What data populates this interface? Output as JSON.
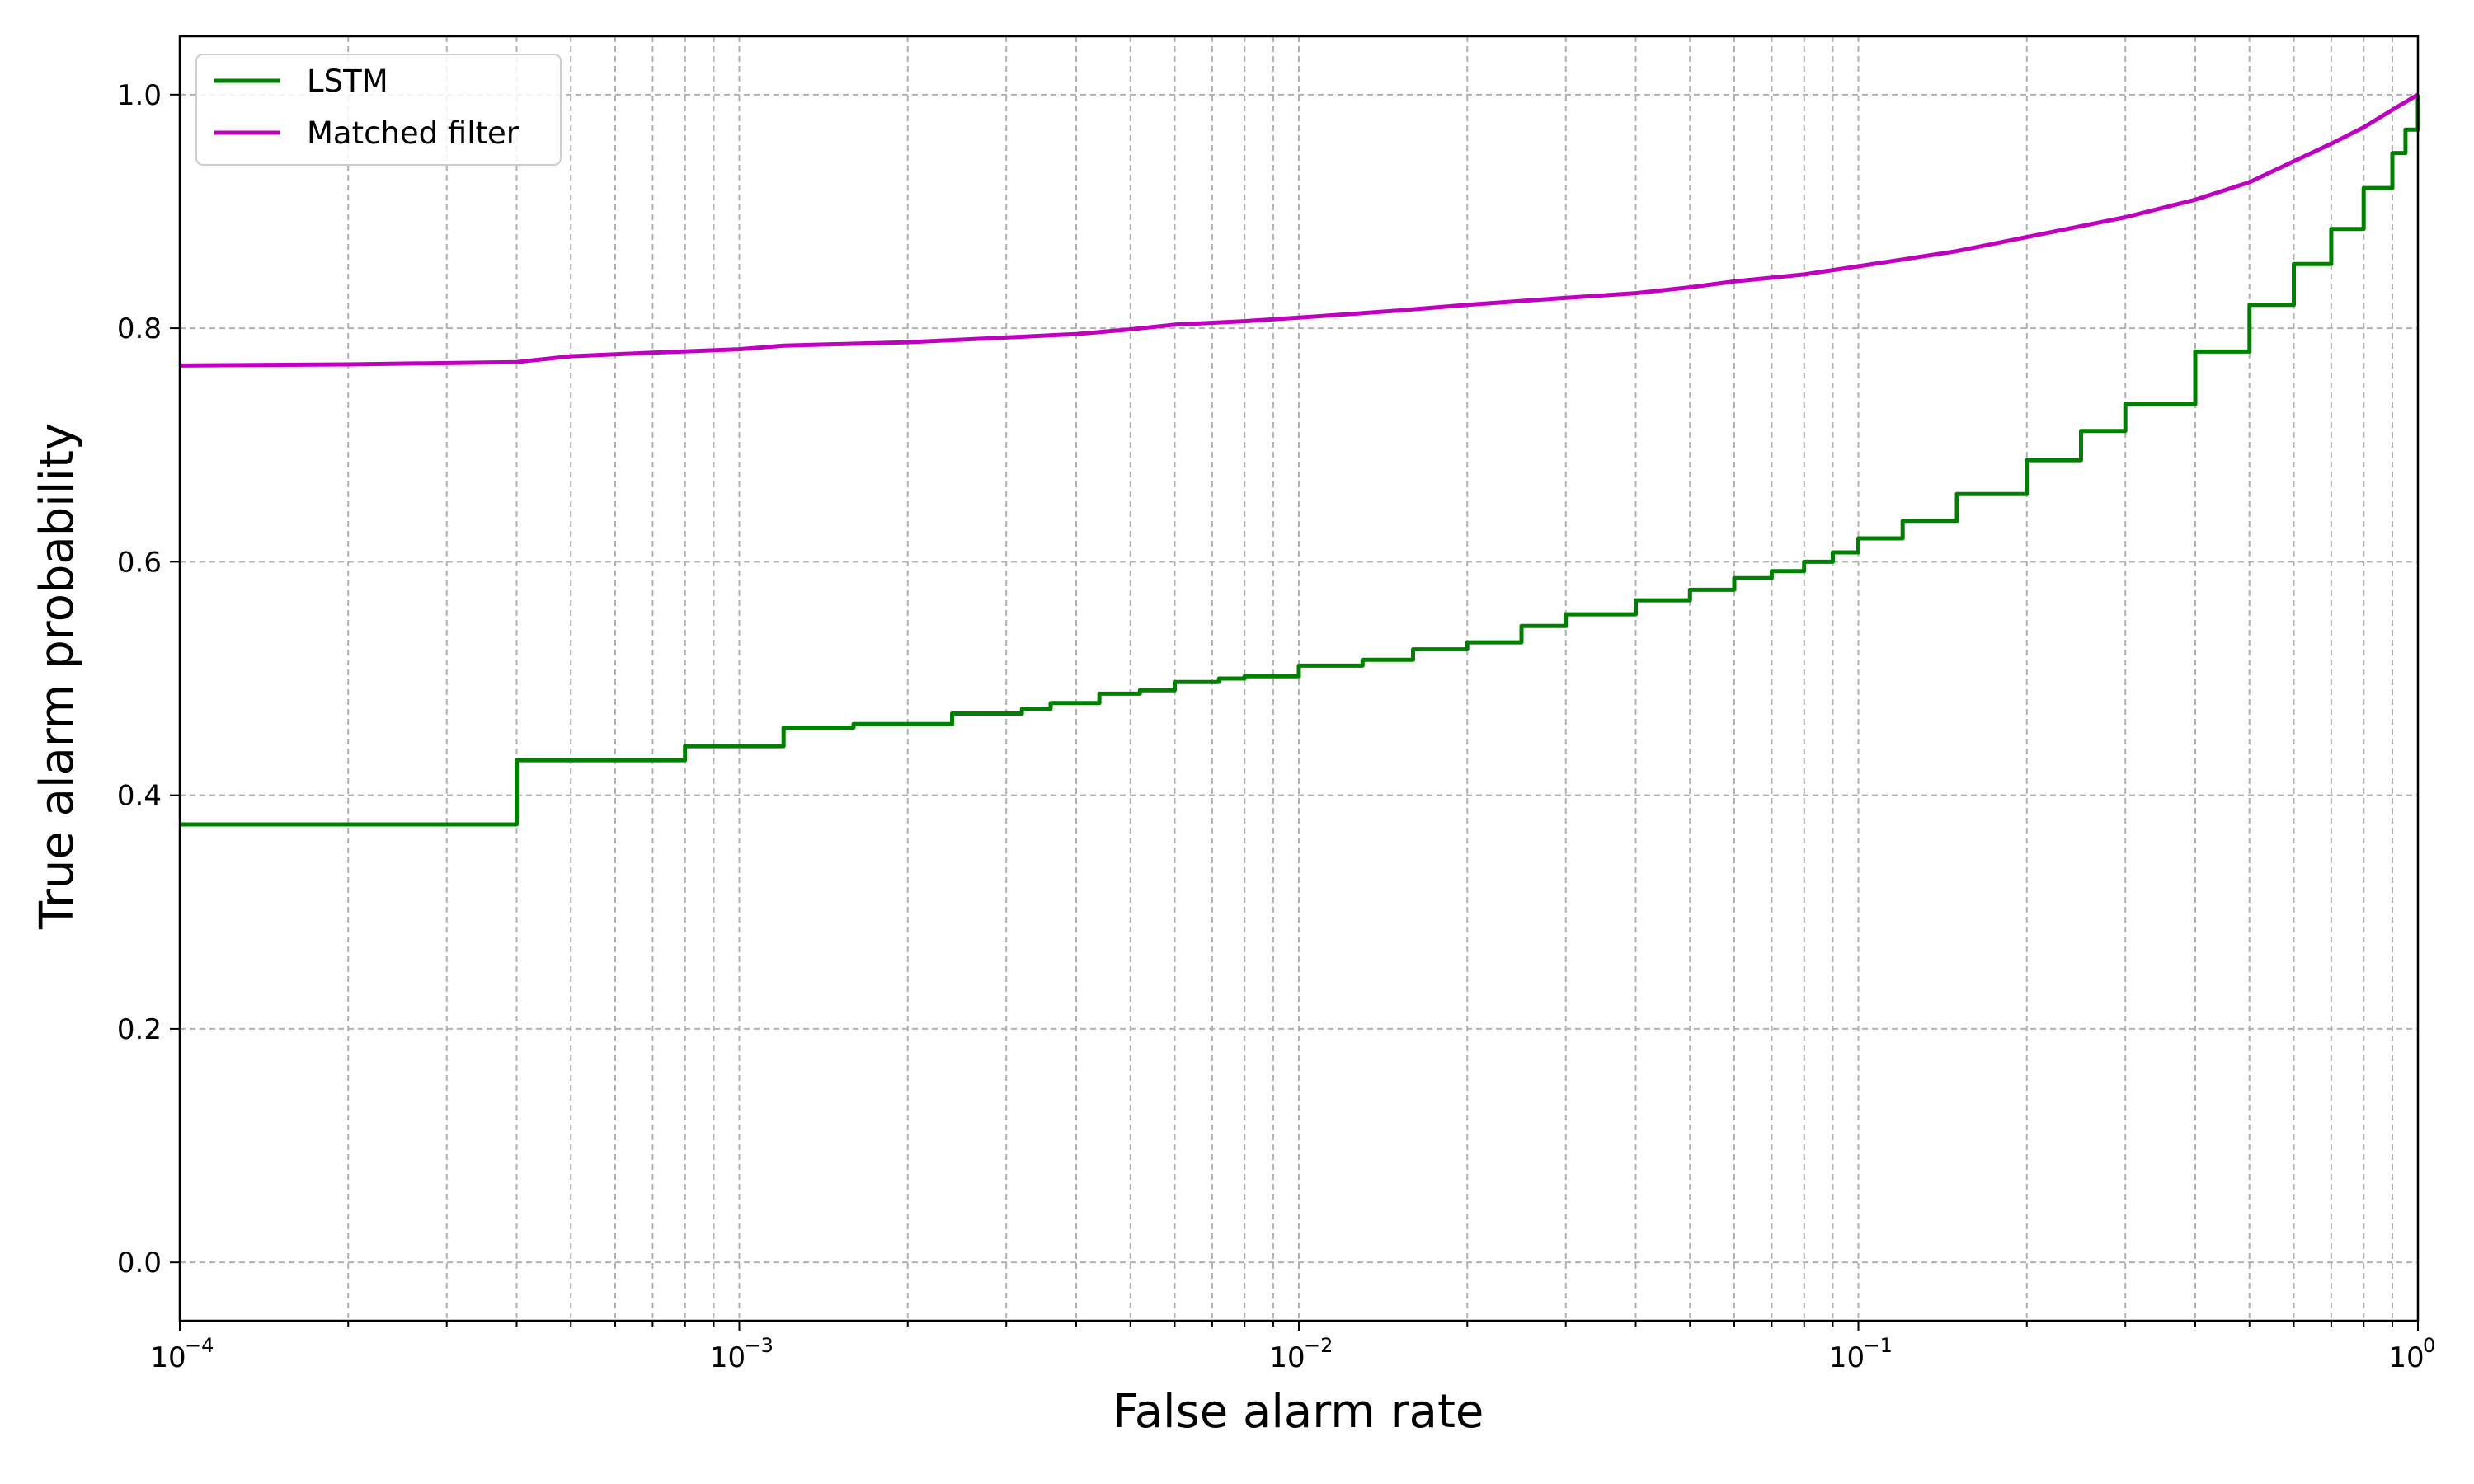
{
  "chart_data": {
    "type": "line",
    "title": "",
    "xlabel": "False alarm rate",
    "ylabel": "True alarm probability",
    "xscale": "log",
    "xlim": [
      0.0001,
      1
    ],
    "ylim": [
      -0.05,
      1.05
    ],
    "x_ticks": [
      {
        "value": 0.0001,
        "base": "10",
        "exp": "−4"
      },
      {
        "value": 0.001,
        "base": "10",
        "exp": "−3"
      },
      {
        "value": 0.01,
        "base": "10",
        "exp": "−2"
      },
      {
        "value": 0.1,
        "base": "10",
        "exp": "−1"
      },
      {
        "value": 1,
        "base": "10",
        "exp": "0"
      }
    ],
    "y_ticks": [
      {
        "value": 0.0,
        "label": "0.0"
      },
      {
        "value": 0.2,
        "label": "0.2"
      },
      {
        "value": 0.4,
        "label": "0.4"
      },
      {
        "value": 0.6,
        "label": "0.6"
      },
      {
        "value": 0.8,
        "label": "0.8"
      },
      {
        "value": 1.0,
        "label": "1.0"
      }
    ],
    "grid": true,
    "grid_style": "dashed, major and minor",
    "legend_position": "upper-left",
    "series": [
      {
        "name": "LSTM",
        "color": "#008000",
        "step": true,
        "x": [
          0.0001,
          0.0004,
          0.0008,
          0.0012,
          0.0016,
          0.0024,
          0.0032,
          0.0036,
          0.0044,
          0.0052,
          0.006,
          0.0072,
          0.008,
          0.01,
          0.013,
          0.016,
          0.02,
          0.025,
          0.03,
          0.04,
          0.05,
          0.06,
          0.07,
          0.08,
          0.09,
          0.1,
          0.12,
          0.15,
          0.2,
          0.25,
          0.3,
          0.4,
          0.5,
          0.6,
          0.7,
          0.8,
          0.9,
          0.95,
          1.0
        ],
        "y": [
          0.375,
          0.43,
          0.442,
          0.458,
          0.461,
          0.47,
          0.474,
          0.479,
          0.487,
          0.49,
          0.497,
          0.5,
          0.502,
          0.511,
          0.516,
          0.525,
          0.531,
          0.545,
          0.555,
          0.567,
          0.576,
          0.586,
          0.592,
          0.6,
          0.608,
          0.62,
          0.635,
          0.658,
          0.687,
          0.712,
          0.735,
          0.78,
          0.82,
          0.855,
          0.885,
          0.92,
          0.95,
          0.97,
          1.0
        ]
      },
      {
        "name": "Matched filter",
        "color": "#bf00bf",
        "step": false,
        "x": [
          0.0001,
          0.0002,
          0.0004,
          0.0005,
          0.0007,
          0.001,
          0.0012,
          0.002,
          0.003,
          0.004,
          0.005,
          0.006,
          0.008,
          0.01,
          0.015,
          0.02,
          0.03,
          0.04,
          0.05,
          0.06,
          0.08,
          0.1,
          0.15,
          0.2,
          0.3,
          0.4,
          0.5,
          0.6,
          0.7,
          0.8,
          0.9,
          1.0
        ],
        "y": [
          0.768,
          0.769,
          0.771,
          0.776,
          0.779,
          0.782,
          0.785,
          0.788,
          0.792,
          0.795,
          0.799,
          0.803,
          0.806,
          0.809,
          0.815,
          0.82,
          0.826,
          0.83,
          0.835,
          0.84,
          0.846,
          0.853,
          0.866,
          0.878,
          0.895,
          0.91,
          0.925,
          0.943,
          0.958,
          0.972,
          0.987,
          1.0
        ]
      }
    ]
  }
}
